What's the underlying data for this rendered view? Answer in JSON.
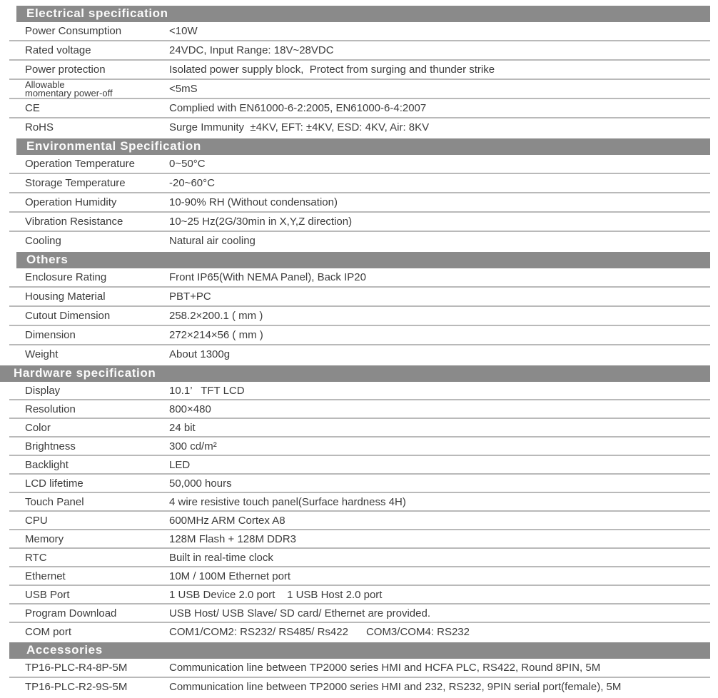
{
  "theme": {
    "header_bar_color": "#8a8a8a",
    "header_text_color": "#fbfbfb",
    "body_text_color": "#3c3c3c",
    "divider_color": "#b9b9b9",
    "background": "#ffffff"
  },
  "sections": [
    {
      "title": "Electrical specification",
      "rows": [
        {
          "label": "Power Consumption",
          "value": "<10W"
        },
        {
          "label": "Rated voltage",
          "value": "24VDC, Input Range: 18V~28VDC"
        },
        {
          "label": "Power protection",
          "value": "Isolated power supply block,  Protect from surging and thunder strike"
        },
        {
          "label": "Allowable\nmomentary power-off",
          "value": "<5mS"
        },
        {
          "label": "CE",
          "value": "Complied with EN61000-6-2:2005, EN61000-6-4:2007"
        },
        {
          "label": "RoHS",
          "value": "Surge Immunity  ±4KV, EFT: ±4KV, ESD: 4KV, Air: 8KV"
        }
      ]
    },
    {
      "title": "Environmental Specification",
      "rows": [
        {
          "label": "Operation Temperature",
          "value": "0~50°C"
        },
        {
          "label": "Storage Temperature",
          "value": "-20~60°C"
        },
        {
          "label": "Operation Humidity",
          "value": "10-90% RH (Without condensation)"
        },
        {
          "label": "Vibration Resistance",
          "value": "10~25 Hz(2G/30min in X,Y,Z direction)"
        },
        {
          "label": "Cooling",
          "value": "Natural air cooling"
        }
      ]
    },
    {
      "title": "Others",
      "rows": [
        {
          "label": "Enclosure Rating",
          "value": "Front IP65(With NEMA Panel), Back IP20"
        },
        {
          "label": "Housing Material",
          "value": "PBT+PC"
        },
        {
          "label": "Cutout Dimension",
          "value": "258.2×200.1 ( mm )"
        },
        {
          "label": "Dimension",
          "value": "272×214×56 ( mm )"
        },
        {
          "label": "Weight",
          "value": "About 1300g"
        }
      ]
    },
    {
      "title": "Hardware specification",
      "rows": [
        {
          "label": "Display",
          "value": "10.1’   TFT LCD"
        },
        {
          "label": "Resolution",
          "value": "800×480"
        },
        {
          "label": "Color",
          "value": "24 bit"
        },
        {
          "label": "Brightness",
          "value": "300 cd/m²"
        },
        {
          "label": "Backlight",
          "value": "LED"
        },
        {
          "label": "LCD lifetime",
          "value": "50,000 hours"
        },
        {
          "label": "Touch Panel",
          "value": "4 wire resistive touch panel(Surface hardness 4H)"
        },
        {
          "label": "CPU",
          "value": "600MHz ARM Cortex A8"
        },
        {
          "label": "Memory",
          "value": "128M Flash + 128M DDR3"
        },
        {
          "label": "RTC",
          "value": "Built in real-time clock"
        },
        {
          "label": "Ethernet",
          "value": "10M / 100M Ethernet port"
        },
        {
          "label": "USB Port",
          "value": "1 USB Device 2.0 port    1 USB Host 2.0 port"
        },
        {
          "label": "Program Download",
          "value": "USB Host/ USB Slave/ SD card/ Ethernet are provided."
        },
        {
          "label": "COM port",
          "value": "COM1/COM2: RS232/ RS485/ Rs422      COM3/COM4: RS232"
        }
      ]
    },
    {
      "title": "Accessories",
      "rows": [
        {
          "label": "TP16-PLC-R4-8P-5M",
          "value": "Communication line between TP2000 series HMI and HCFA PLC, RS422, Round 8PIN, 5M"
        },
        {
          "label": "TP16-PLC-R2-9S-5M",
          "value": "Communication line between TP2000 series HMI and 232, RS232, 9PIN serial port(female), 5M"
        }
      ]
    }
  ]
}
